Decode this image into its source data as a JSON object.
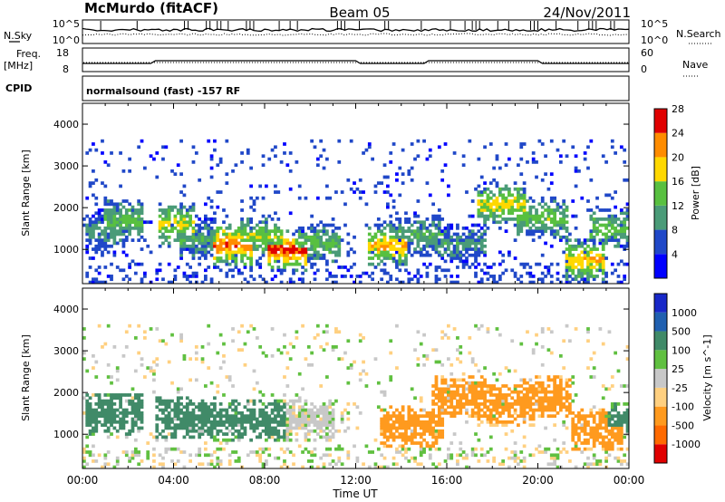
{
  "header": {
    "station": "McMurdo (fitACF)",
    "beam": "Beam 05",
    "date": "24/Nov/2011"
  },
  "noise_panel": {
    "left_label": "N.Sky",
    "left_ticks": [
      "10^5",
      "10^0"
    ],
    "right_ticks": [
      "10^5",
      "10^0"
    ],
    "right_label": "N.Search"
  },
  "freq_panel": {
    "left_label_line1": "Freq.",
    "left_label_line2": "[MHz]",
    "left_ticks": [
      "18",
      "8"
    ],
    "right_ticks": [
      "60",
      "0"
    ],
    "right_label": "Nave"
  },
  "cpid_panel": {
    "label": "CPID",
    "text": "normalsound (fast) -157 RF"
  },
  "x_axis": {
    "label": "Time UT",
    "ticks": [
      "00:00",
      "04:00",
      "08:00",
      "12:00",
      "16:00",
      "20:00",
      "00:00"
    ]
  },
  "chart_data": [
    {
      "type": "heatmap",
      "title": "",
      "xlabel": "Time UT",
      "ylabel": "Slant Range [km]",
      "x_ticks": [
        "00:00",
        "04:00",
        "08:00",
        "12:00",
        "16:00",
        "20:00",
        "00:00"
      ],
      "y_ticks": [
        1000,
        2000,
        3000,
        4000
      ],
      "ylim": [
        180,
        4500
      ],
      "colorbar": {
        "label": "Power [dB]",
        "ticks": [
          4,
          8,
          12,
          16,
          20,
          24,
          28
        ],
        "range": [
          0,
          30
        ],
        "colors": [
          "#0000ff",
          "#2048c8",
          "#4a9b78",
          "#58c040",
          "#ffd800",
          "#ff8c00",
          "#e00000"
        ]
      },
      "features": [
        {
          "start_h": 0.5,
          "end_h": 1.6,
          "range_km": 1400,
          "db": 10
        },
        {
          "start_h": 1.3,
          "end_h": 2.4,
          "range_km": 1700,
          "db": 14
        },
        {
          "start_h": 3.6,
          "end_h": 4.6,
          "range_km": 1600,
          "db": 18
        },
        {
          "start_h": 4.5,
          "end_h": 5.6,
          "range_km": 1250,
          "db": 12
        },
        {
          "start_h": 6.0,
          "end_h": 7.2,
          "range_km": 1100,
          "db": 24
        },
        {
          "start_h": 7.3,
          "end_h": 8.5,
          "range_km": 1300,
          "db": 16
        },
        {
          "start_h": 8.5,
          "end_h": 9.5,
          "range_km": 1000,
          "db": 26
        },
        {
          "start_h": 9.6,
          "end_h": 11.0,
          "range_km": 1150,
          "db": 14
        },
        {
          "start_h": 12.8,
          "end_h": 14.0,
          "range_km": 1100,
          "db": 20
        },
        {
          "start_h": 14.0,
          "end_h": 15.5,
          "range_km": 1350,
          "db": 12
        },
        {
          "start_h": 15.8,
          "end_h": 17.4,
          "range_km": 1150,
          "db": 10
        },
        {
          "start_h": 17.6,
          "end_h": 19.2,
          "range_km": 2100,
          "db": 18
        },
        {
          "start_h": 19.4,
          "end_h": 21.0,
          "range_km": 1750,
          "db": 14
        },
        {
          "start_h": 21.5,
          "end_h": 22.6,
          "range_km": 750,
          "db": 20
        },
        {
          "start_h": 22.6,
          "end_h": 23.8,
          "range_km": 1500,
          "db": 14
        }
      ]
    },
    {
      "type": "heatmap",
      "title": "",
      "xlabel": "Time UT",
      "ylabel": "Slant Range [km]",
      "x_ticks": [
        "00:00",
        "04:00",
        "08:00",
        "12:00",
        "16:00",
        "20:00",
        "00:00"
      ],
      "y_ticks": [
        1000,
        2000,
        3000,
        4000
      ],
      "ylim": [
        180,
        4500
      ],
      "colorbar": {
        "label": "Velocity [m s^-1]",
        "ticks": [
          "1000",
          "500",
          "100",
          "25",
          "-25",
          "-100",
          "-500",
          "-1000"
        ],
        "range": [
          -1000,
          1000
        ],
        "colors": [
          "#e00000",
          "#ff6a00",
          "#ff9a1e",
          "#ffd080",
          "#c8c8c8",
          "#60c040",
          "#408a68",
          "#2060b0",
          "#1828c8"
        ]
      },
      "features": [
        {
          "start_h": 0.5,
          "end_h": 2.4,
          "range_km": 1500,
          "v": 300
        },
        {
          "start_h": 3.5,
          "end_h": 5.6,
          "range_km": 1400,
          "v": 300
        },
        {
          "start_h": 6.0,
          "end_h": 8.6,
          "range_km": 1350,
          "v": 250
        },
        {
          "start_h": 8.6,
          "end_h": 10.8,
          "range_km": 1350,
          "v": 0
        },
        {
          "start_h": 13.4,
          "end_h": 15.6,
          "range_km": 1200,
          "v": -300
        },
        {
          "start_h": 15.6,
          "end_h": 17.4,
          "range_km": 1900,
          "v": -300
        },
        {
          "start_h": 17.6,
          "end_h": 19.6,
          "range_km": 1700,
          "v": -250
        },
        {
          "start_h": 19.6,
          "end_h": 21.2,
          "range_km": 1900,
          "v": -300
        },
        {
          "start_h": 21.8,
          "end_h": 23.4,
          "range_km": 1100,
          "v": -300
        },
        {
          "start_h": 23.4,
          "end_h": 24.0,
          "range_km": 1300,
          "v": 200
        }
      ]
    }
  ]
}
